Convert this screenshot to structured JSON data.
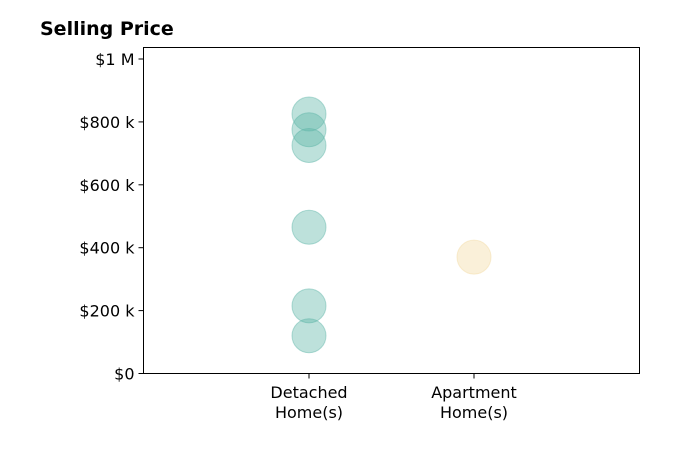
{
  "chart_data": {
    "type": "scatter",
    "title": "Selling Price",
    "xlabel": "",
    "ylabel": "",
    "categories": [
      "Detached Home(s)",
      "Apartment Home(s)"
    ],
    "category_label_lines": [
      [
        "Detached",
        "Home(s)"
      ],
      [
        "Apartment",
        "Home(s)"
      ]
    ],
    "ylim": [
      0,
      1000000
    ],
    "y_ticks": [
      0,
      200000,
      400000,
      600000,
      800000,
      1000000
    ],
    "y_tick_labels": [
      "$0",
      "$200 k",
      "$400 k",
      "$600 k",
      "$800 k",
      "$1 M"
    ],
    "grid": false,
    "legend": "none",
    "series": [
      {
        "category": "Detached Home(s)",
        "color": "#5ab4a6",
        "values": [
          825000,
          775000,
          725000,
          465000,
          215000,
          120000
        ]
      },
      {
        "category": "Apartment Home(s)",
        "color": "#f2d9a0",
        "values": [
          370000
        ]
      }
    ]
  }
}
